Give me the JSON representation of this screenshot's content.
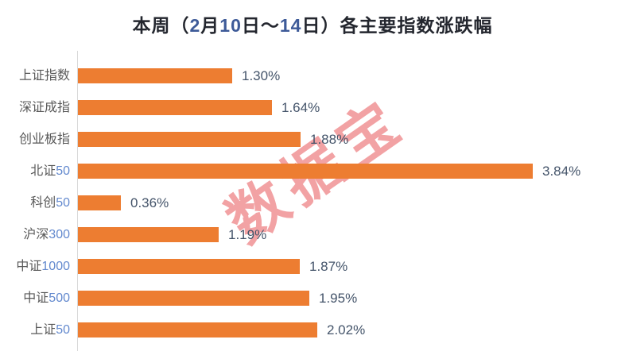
{
  "chart_data": {
    "type": "bar",
    "orientation": "horizontal",
    "title": "本周（2月10日～14日）各主要指数涨跌幅",
    "categories": [
      "上证指数",
      "深证成指",
      "创业板指",
      "北证50",
      "科创50",
      "沪深300",
      "中证1000",
      "中证500",
      "上证50"
    ],
    "values": [
      1.3,
      1.64,
      1.88,
      3.84,
      0.36,
      1.19,
      1.87,
      1.95,
      2.02
    ],
    "value_labels": [
      "1.30%",
      "1.64%",
      "1.88%",
      "3.84%",
      "0.36%",
      "1.19%",
      "1.87%",
      "1.95%",
      "2.02%"
    ],
    "xlabel": "",
    "ylabel": "",
    "xlim": [
      0,
      4.6
    ],
    "grid": false,
    "legend_position": "none",
    "watermark": "数据宝"
  },
  "colors": {
    "bar": "#ED7D31",
    "axis_line": "#D9D9D9",
    "title_text": "#23262E",
    "title_number": "#3D5A98",
    "category_text": "#595959",
    "category_number": "#6389CE",
    "value_label": "#44546A",
    "watermark": "#F19B9D",
    "background": "#FFFFFF"
  }
}
